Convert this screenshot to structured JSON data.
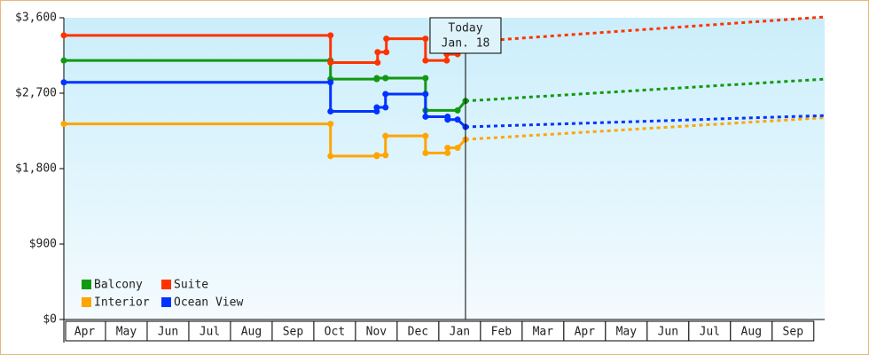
{
  "chart_data": {
    "type": "line",
    "xlim": [
      0,
      18.26
    ],
    "ylim": [
      0,
      3600
    ],
    "yticks": [
      {
        "value": 0,
        "label": "$0"
      },
      {
        "value": 900,
        "label": "$900"
      },
      {
        "value": 1800,
        "label": "$1,800"
      },
      {
        "value": 2700,
        "label": "$2,700"
      },
      {
        "value": 3600,
        "label": "$3,600"
      }
    ],
    "xticks": [
      {
        "value": 0.5,
        "label": "Apr"
      },
      {
        "value": 1.5,
        "label": "May"
      },
      {
        "value": 2.5,
        "label": "Jun"
      },
      {
        "value": 3.5,
        "label": "Jul"
      },
      {
        "value": 4.5,
        "label": "Aug"
      },
      {
        "value": 5.5,
        "label": "Sep"
      },
      {
        "value": 6.5,
        "label": "Oct"
      },
      {
        "value": 7.5,
        "label": "Nov"
      },
      {
        "value": 8.5,
        "label": "Dec"
      },
      {
        "value": 9.5,
        "label": "Jan"
      },
      {
        "value": 10.5,
        "label": "Feb"
      },
      {
        "value": 11.5,
        "label": "Mar"
      },
      {
        "value": 12.5,
        "label": "Apr"
      },
      {
        "value": 13.5,
        "label": "May"
      },
      {
        "value": 14.5,
        "label": "Jun"
      },
      {
        "value": 15.5,
        "label": "Jul"
      },
      {
        "value": 16.5,
        "label": "Aug"
      },
      {
        "value": 17.5,
        "label": "Sep"
      }
    ],
    "annotation": {
      "x": 9.64,
      "lines": [
        "Today",
        "Jan. 18"
      ]
    },
    "legend": "lower left",
    "series": [
      {
        "name": "Balcony",
        "color": "#119911",
        "x": [
          0,
          6.4,
          6.4,
          7.51,
          7.51,
          7.72,
          7.72,
          8.68,
          8.68,
          9.45,
          9.64
        ],
        "values": [
          3090,
          3090,
          2868,
          2868,
          2880,
          2880,
          2880,
          2880,
          2495,
          2495,
          2607
        ],
        "projection": {
          "x": [
            9.64,
            18.26
          ],
          "values": [
            2607,
            2868
          ]
        }
      },
      {
        "name": "Suite",
        "color": "#ff3300",
        "x": [
          0,
          6.4,
          6.4,
          7.53,
          7.53,
          7.74,
          7.74,
          8.68,
          8.68,
          9.19,
          9.19,
          9.45,
          9.64
        ],
        "values": [
          3390,
          3390,
          3065,
          3065,
          3190,
          3190,
          3350,
          3350,
          3090,
          3090,
          3165,
          3165,
          3310
        ],
        "projection": {
          "x": [
            9.64,
            18.26
          ],
          "values": [
            3310,
            3610
          ]
        }
      },
      {
        "name": "Interior",
        "color": "#ffa500",
        "x": [
          0,
          6.4,
          6.4,
          7.51,
          7.51,
          7.72,
          7.72,
          8.68,
          8.68,
          9.21,
          9.21,
          9.45,
          9.64
        ],
        "values": [
          2334,
          2334,
          1949,
          1949,
          1960,
          1960,
          2190,
          2190,
          1986,
          1986,
          2048,
          2048,
          2148
        ],
        "projection": {
          "x": [
            9.64,
            18.26
          ],
          "values": [
            2148,
            2408
          ]
        }
      },
      {
        "name": "Ocean View",
        "color": "#0033ff",
        "x": [
          0,
          6.4,
          6.4,
          7.51,
          7.51,
          7.72,
          7.72,
          8.68,
          8.68,
          9.21,
          9.21,
          9.45,
          9.64
        ],
        "values": [
          2830,
          2830,
          2483,
          2483,
          2530,
          2530,
          2690,
          2690,
          2420,
          2420,
          2385,
          2385,
          2297
        ],
        "projection": {
          "x": [
            9.64,
            18.26
          ],
          "values": [
            2297,
            2433
          ]
        }
      }
    ]
  }
}
